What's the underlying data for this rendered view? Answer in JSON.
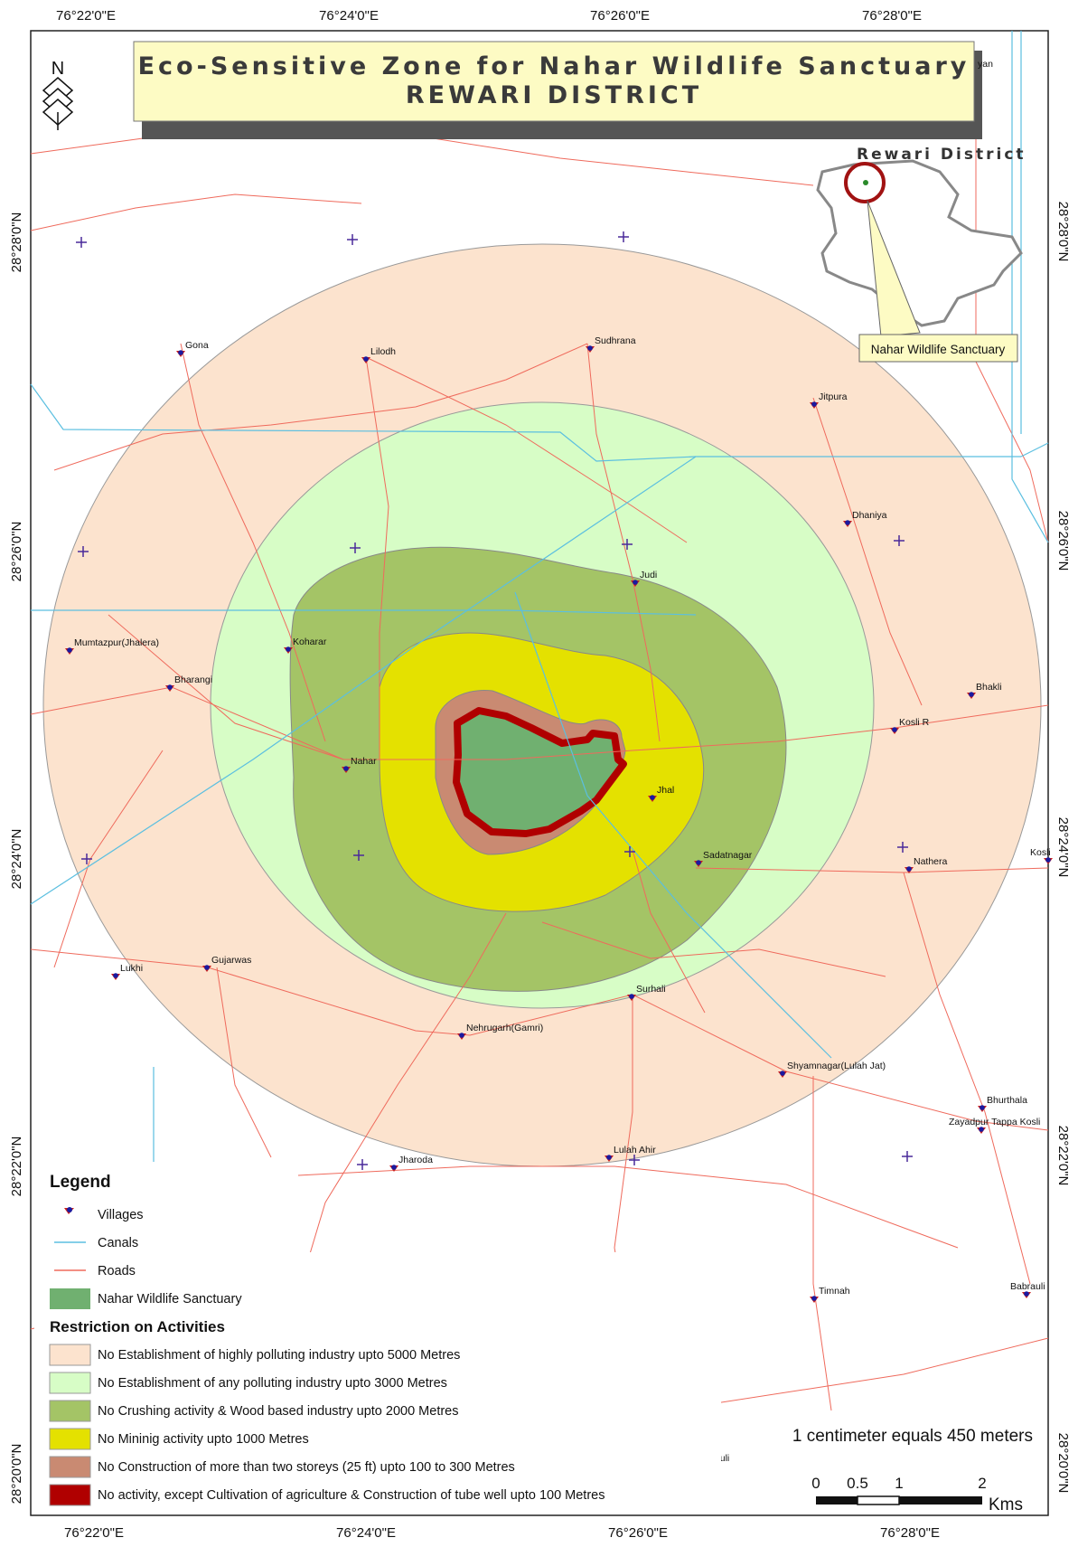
{
  "title": {
    "line1": "Eco-Sensitive Zone for Nahar Wildlife Sanctuary",
    "line2": "REWARI DISTRICT"
  },
  "north_arrow": {
    "letter": "N"
  },
  "coordinates": {
    "top": [
      "76°22'0\"E",
      "76°24'0\"E",
      "76°26'0\"E",
      "76°28'0\"E"
    ],
    "bottom": [
      "76°22'0\"E",
      "76°24'0\"E",
      "76°26'0\"E",
      "76°28'0\"E"
    ],
    "left": [
      "28°28'0\"N",
      "28°26'0\"N",
      "28°24'0\"N",
      "28°22'0\"N",
      "28°20'0\"N"
    ],
    "right": [
      "28°28'0\"N",
      "28°26'0\"N",
      "28°24'0\"N",
      "28°22'0\"N",
      "28°20'0\"N"
    ]
  },
  "inset": {
    "title": "Rewari District",
    "callout": "Nahar Wildlife Sanctuary"
  },
  "edge_label": "yan",
  "villages": [
    {
      "name": "Gona"
    },
    {
      "name": "Lilodh"
    },
    {
      "name": "Sudhrana"
    },
    {
      "name": "Jitpura"
    },
    {
      "name": "Dhaniya"
    },
    {
      "name": "Judi"
    },
    {
      "name": "Koharar"
    },
    {
      "name": "Mumtazpur(Jhalera)"
    },
    {
      "name": "Bharangi"
    },
    {
      "name": "Bhakli"
    },
    {
      "name": "Kosli R"
    },
    {
      "name": "Nahar"
    },
    {
      "name": "Jhal"
    },
    {
      "name": "Sadatnagar"
    },
    {
      "name": "Nathera"
    },
    {
      "name": "Kosli"
    },
    {
      "name": "Gujarwas"
    },
    {
      "name": "Lukhi"
    },
    {
      "name": "Surhali"
    },
    {
      "name": "Nehrugarh(Gamri)"
    },
    {
      "name": "Shyamnagar(Lulah Jat)"
    },
    {
      "name": "Bhurthala"
    },
    {
      "name": "Zayadpur Tappa Kosli"
    },
    {
      "name": "Jharoda"
    },
    {
      "name": "Lulah Ahir"
    },
    {
      "name": "Timnah"
    },
    {
      "name": "Babrauli"
    },
    {
      "name": "Darauli"
    }
  ],
  "legend": {
    "heading": "Legend",
    "items": [
      {
        "label": "Villages"
      },
      {
        "label": "Canals"
      },
      {
        "label": "Roads"
      },
      {
        "label": "Nahar Wildlife Sanctuary"
      }
    ],
    "restriction_heading": "Restriction on Activities",
    "restrictions": [
      {
        "label": "No Establishment of highly polluting industry upto 5000 Metres"
      },
      {
        "label": "No Establishment of any polluting industry upto 3000 Metres"
      },
      {
        "label": "No Crushing activity & Wood based industry  upto 2000 Metres"
      },
      {
        "label": "No Mininig activity upto 1000 Metres"
      },
      {
        "label": "No Construction of more than two storeys (25 ft) upto 100 to 300 Metres"
      },
      {
        "label": "No  activity, except Cultivation of agriculture & Construction of tube well  upto 100 Metres"
      }
    ]
  },
  "scale": {
    "text": "1 centimeter equals 450 meters",
    "ticks": [
      "0",
      "0.5",
      "1",
      "2"
    ],
    "unit": "Kms"
  },
  "colors": {
    "zone_5000": "#fce3ce",
    "zone_3000": "#d7fdc6",
    "zone_2000": "#a4c466",
    "zone_1000": "#e4e100",
    "zone_300": "#c98a72",
    "zone_100": "#b00000",
    "sanctuary": "#70b070",
    "roads": "#ef6a5c",
    "canals": "#5bbfe0",
    "village_marker": "#1a1aa0",
    "title_box": "#fdfbc4"
  }
}
